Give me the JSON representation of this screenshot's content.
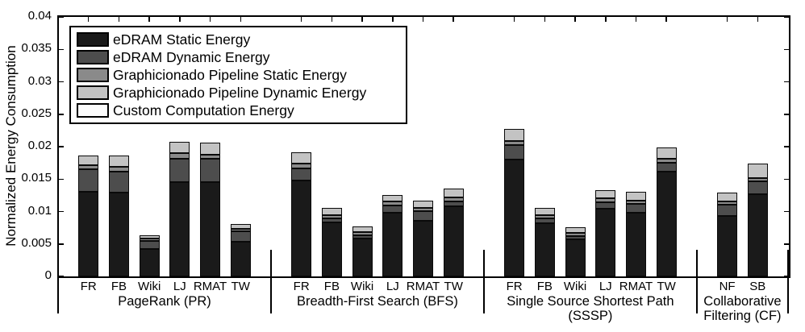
{
  "chart_data": {
    "type": "stacked-bar",
    "title": "",
    "ylabel": "Normalized Energy Consumption",
    "xlabel": "",
    "ylim": [
      0,
      0.04
    ],
    "yticks": [
      0,
      0.005,
      0.01,
      0.015,
      0.02,
      0.025,
      0.03,
      0.035,
      0.04
    ],
    "ytick_labels": [
      "0",
      "0.005",
      "0.01",
      "0.015",
      "0.02",
      "0.025",
      "0.03",
      "0.035",
      "0.04"
    ],
    "grid": false,
    "legend_position": "upper-left",
    "legend": [
      {
        "label": "eDRAM Static Energy",
        "color": "#1a1a1a"
      },
      {
        "label": "eDRAM Dynamic Energy",
        "color": "#4d4d4d"
      },
      {
        "label": "Graphicionado Pipeline Static Energy",
        "color": "#8a8a8a"
      },
      {
        "label": "Graphicionado Pipeline Dynamic Energy",
        "color": "#c3c3c3"
      },
      {
        "label": "Custom Computation Energy",
        "color": "#fcfcfc"
      }
    ],
    "series_stack_order_bottom_to_top": [
      "eDRAM Static Energy",
      "eDRAM Dynamic Energy",
      "Graphicionado Pipeline Static Energy",
      "Graphicionado Pipeline Dynamic Energy",
      "Custom Computation Energy"
    ],
    "groups": [
      {
        "label": "PageRank (PR)",
        "bars": [
          {
            "name": "FR",
            "values": [
              0.013,
              0.0035,
              0.0006,
              0.0015,
              0
            ]
          },
          {
            "name": "FB",
            "values": [
              0.0129,
              0.0033,
              0.0007,
              0.0017,
              0
            ]
          },
          {
            "name": "Wiki",
            "values": [
              0.0042,
              0.0013,
              0.0004,
              0.0005,
              0
            ]
          },
          {
            "name": "LJ",
            "values": [
              0.0145,
              0.0037,
              0.0008,
              0.0018,
              0
            ]
          },
          {
            "name": "RMAT",
            "values": [
              0.0145,
              0.0036,
              0.0007,
              0.0018,
              0
            ]
          },
          {
            "name": "TW",
            "values": [
              0.0054,
              0.0016,
              0.0003,
              0.0008,
              0
            ]
          }
        ]
      },
      {
        "label": "Breadth-First Search (BFS)",
        "bars": [
          {
            "name": "FR",
            "values": [
              0.0148,
              0.0018,
              0.0008,
              0.0017,
              0
            ]
          },
          {
            "name": "FB",
            "values": [
              0.0083,
              0.0006,
              0.0006,
              0.0011,
              0
            ]
          },
          {
            "name": "Wiki",
            "values": [
              0.0058,
              0.0005,
              0.0005,
              0.0009,
              0
            ]
          },
          {
            "name": "LJ",
            "values": [
              0.0098,
              0.0011,
              0.0006,
              0.0011,
              0
            ]
          },
          {
            "name": "RMAT",
            "values": [
              0.0086,
              0.0015,
              0.0004,
              0.0012,
              0
            ]
          },
          {
            "name": "TW",
            "values": [
              0.0108,
              0.0008,
              0.0006,
              0.0013,
              0
            ]
          }
        ]
      },
      {
        "label": "Single Source Shortest Path (SSSP)",
        "bars": [
          {
            "name": "FR",
            "values": [
              0.018,
              0.0022,
              0.0007,
              0.0018,
              0
            ]
          },
          {
            "name": "FB",
            "values": [
              0.0082,
              0.0008,
              0.0005,
              0.0011,
              0
            ]
          },
          {
            "name": "Wiki",
            "values": [
              0.0057,
              0.0005,
              0.0005,
              0.0009,
              0
            ]
          },
          {
            "name": "LJ",
            "values": [
              0.0104,
              0.001,
              0.0006,
              0.0013,
              0
            ]
          },
          {
            "name": "RMAT",
            "values": [
              0.0098,
              0.0014,
              0.0005,
              0.0013,
              0
            ]
          },
          {
            "name": "TW",
            "values": [
              0.0162,
              0.0013,
              0.0007,
              0.0017,
              0
            ]
          }
        ]
      },
      {
        "label": "Collaborative Filtering (CF)",
        "bars": [
          {
            "name": "NF",
            "values": [
              0.0093,
              0.0018,
              0.0005,
              0.0013,
              0
            ]
          },
          {
            "name": "SB",
            "values": [
              0.0127,
              0.0019,
              0.0006,
              0.0022,
              0
            ]
          }
        ]
      }
    ]
  }
}
